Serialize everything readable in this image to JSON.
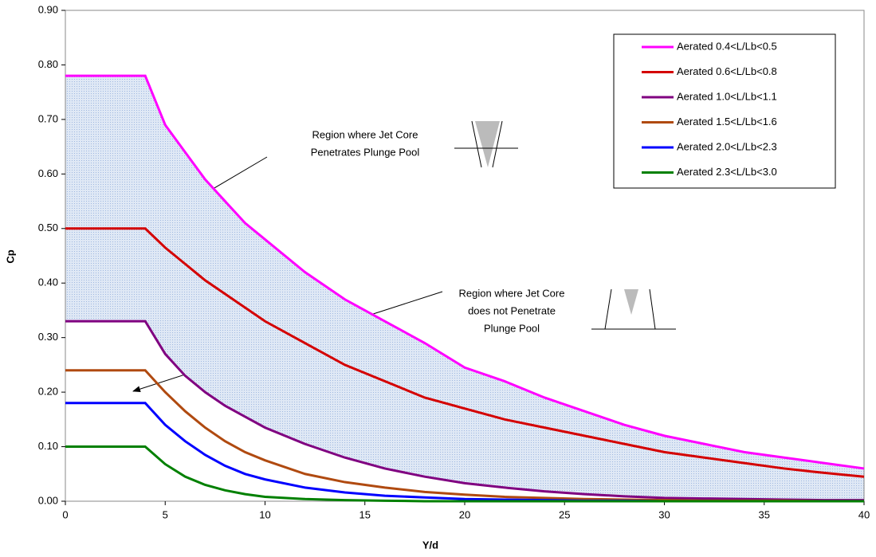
{
  "chart_data": {
    "type": "line",
    "x_label": "Y/d",
    "y_label": "Cp",
    "x": [
      0,
      4,
      5,
      6,
      7,
      8,
      9,
      10,
      12,
      14,
      16,
      18,
      20,
      22,
      24,
      26,
      28,
      30,
      32,
      34,
      36,
      38,
      40
    ],
    "series": [
      {
        "name": "Aerated 0.4<L/Lb<0.5",
        "color": "#ff00ff",
        "values": [
          0.78,
          0.78,
          0.69,
          0.64,
          0.59,
          0.55,
          0.51,
          0.48,
          0.42,
          0.37,
          0.33,
          0.29,
          0.245,
          0.22,
          0.19,
          0.165,
          0.14,
          0.12,
          0.105,
          0.09,
          0.08,
          0.07,
          0.06
        ]
      },
      {
        "name": "Aerated 0.6<L/Lb<0.8",
        "color": "#d40000",
        "values": [
          0.5,
          0.5,
          0.465,
          0.435,
          0.405,
          0.38,
          0.355,
          0.33,
          0.29,
          0.25,
          0.22,
          0.19,
          0.17,
          0.15,
          0.135,
          0.12,
          0.105,
          0.09,
          0.08,
          0.07,
          0.06,
          0.052,
          0.045
        ]
      },
      {
        "name": "Aerated 1.0<L/Lb<1.1",
        "color": "#800080",
        "values": [
          0.33,
          0.33,
          0.27,
          0.23,
          0.2,
          0.175,
          0.155,
          0.135,
          0.105,
          0.08,
          0.06,
          0.045,
          0.033,
          0.025,
          0.018,
          0.013,
          0.009,
          0.006,
          0.005,
          0.004,
          0.003,
          0.002,
          0.002
        ]
      },
      {
        "name": "Aerated 1.5<L/Lb<1.6",
        "color": "#b04a10",
        "values": [
          0.24,
          0.24,
          0.2,
          0.165,
          0.135,
          0.11,
          0.09,
          0.075,
          0.05,
          0.035,
          0.025,
          0.017,
          0.012,
          0.008,
          0.006,
          0.004,
          0.003,
          0.002,
          0.001,
          0.001,
          0.001,
          0,
          0
        ]
      },
      {
        "name": "Aerated 2.0<L/Lb<2.3",
        "color": "#0000ff",
        "values": [
          0.18,
          0.18,
          0.14,
          0.11,
          0.085,
          0.065,
          0.05,
          0.04,
          0.025,
          0.016,
          0.01,
          0.007,
          0.004,
          0.003,
          0.002,
          0.001,
          0.001,
          0,
          0,
          0,
          0,
          0,
          0
        ]
      },
      {
        "name": "Aerated 2.3<L/Lb<3.0",
        "color": "#008000",
        "values": [
          0.1,
          0.1,
          0.068,
          0.045,
          0.03,
          0.02,
          0.013,
          0.008,
          0.004,
          0.002,
          0.001,
          0,
          0,
          0,
          0,
          0,
          0,
          0,
          0,
          0,
          0,
          0,
          0
        ]
      }
    ],
    "xlim": [
      0,
      40
    ],
    "xticks": [
      0,
      5,
      10,
      15,
      20,
      25,
      30,
      35,
      40
    ],
    "ylim": [
      0,
      0.9
    ],
    "yticks": [
      {
        "value": 0,
        "label": "0.00"
      },
      {
        "value": 0.1,
        "label": "0.10"
      },
      {
        "value": 0.2,
        "label": "0.20"
      },
      {
        "value": 0.3,
        "label": "0.30"
      },
      {
        "value": 0.4,
        "label": "0.40"
      },
      {
        "value": 0.5,
        "label": "0.50"
      },
      {
        "value": 0.6,
        "label": "0.60"
      },
      {
        "value": 0.7,
        "label": "0.70"
      },
      {
        "value": 0.8,
        "label": "0.80"
      },
      {
        "value": 0.9,
        "label": "0.90"
      }
    ],
    "annotations": [
      {
        "lines": [
          "Region where Jet Core",
          "Penetrates Plunge Pool"
        ]
      },
      {
        "lines": [
          "Region where Jet Core",
          "does not Penetrate",
          "Plunge Pool"
        ]
      }
    ]
  }
}
